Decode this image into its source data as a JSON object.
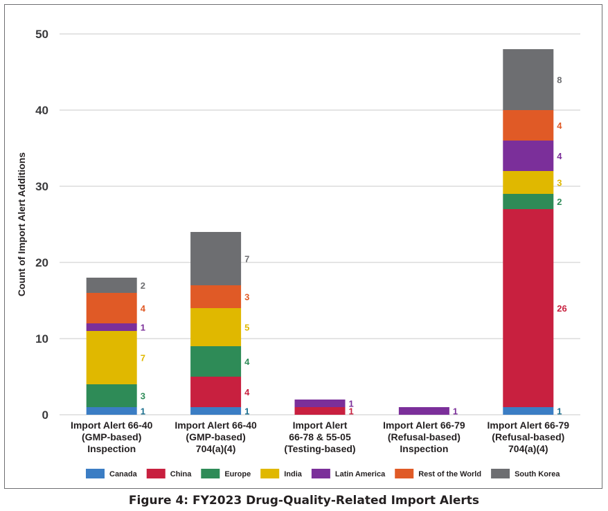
{
  "caption": "Figure 4: FY2023 Drug-Quality-Related Import Alerts",
  "chart_data": {
    "type": "bar",
    "stacked": true,
    "ylabel": "Count of Import Alert Additions",
    "ylim": [
      0,
      50
    ],
    "yticks": [
      0,
      10,
      20,
      30,
      40,
      50
    ],
    "grid": true,
    "legend_position": "bottom",
    "categories": [
      [
        "Import Alert 66-40",
        "(GMP-based)",
        "Inspection"
      ],
      [
        "Import Alert 66-40",
        "(GMP-based)",
        "704(a)(4)"
      ],
      [
        "Import Alert",
        "66-78 & 55-05",
        "(Testing-based)"
      ],
      [
        "Import Alert 66-79",
        "(Refusal-based)",
        "Inspection"
      ],
      [
        "Import Alert 66-79",
        "(Refusal-based)",
        "704(a)(4)"
      ]
    ],
    "series": [
      {
        "name": "Canada",
        "color": "#3b7dc4",
        "label_color": "#1a6f8f",
        "values": [
          1,
          1,
          0,
          0,
          1
        ]
      },
      {
        "name": "China",
        "color": "#c8203f",
        "label_color": "#c8203f",
        "values": [
          0,
          4,
          1,
          0,
          26
        ]
      },
      {
        "name": "Europe",
        "color": "#2e8b57",
        "label_color": "#2e8b57",
        "values": [
          3,
          4,
          0,
          0,
          2
        ]
      },
      {
        "name": "India",
        "color": "#e0b800",
        "label_color": "#e0b800",
        "values": [
          7,
          5,
          0,
          0,
          3
        ]
      },
      {
        "name": "Latin America",
        "color": "#7b2f9a",
        "label_color": "#7b2f9a",
        "values": [
          1,
          0,
          1,
          1,
          4
        ]
      },
      {
        "name": "Rest of the World",
        "color": "#e05a26",
        "label_color": "#e05a26",
        "values": [
          4,
          3,
          0,
          0,
          4
        ]
      },
      {
        "name": "South Korea",
        "color": "#6d6e71",
        "label_color": "#6d6e71",
        "values": [
          2,
          7,
          0,
          0,
          8
        ]
      }
    ]
  }
}
